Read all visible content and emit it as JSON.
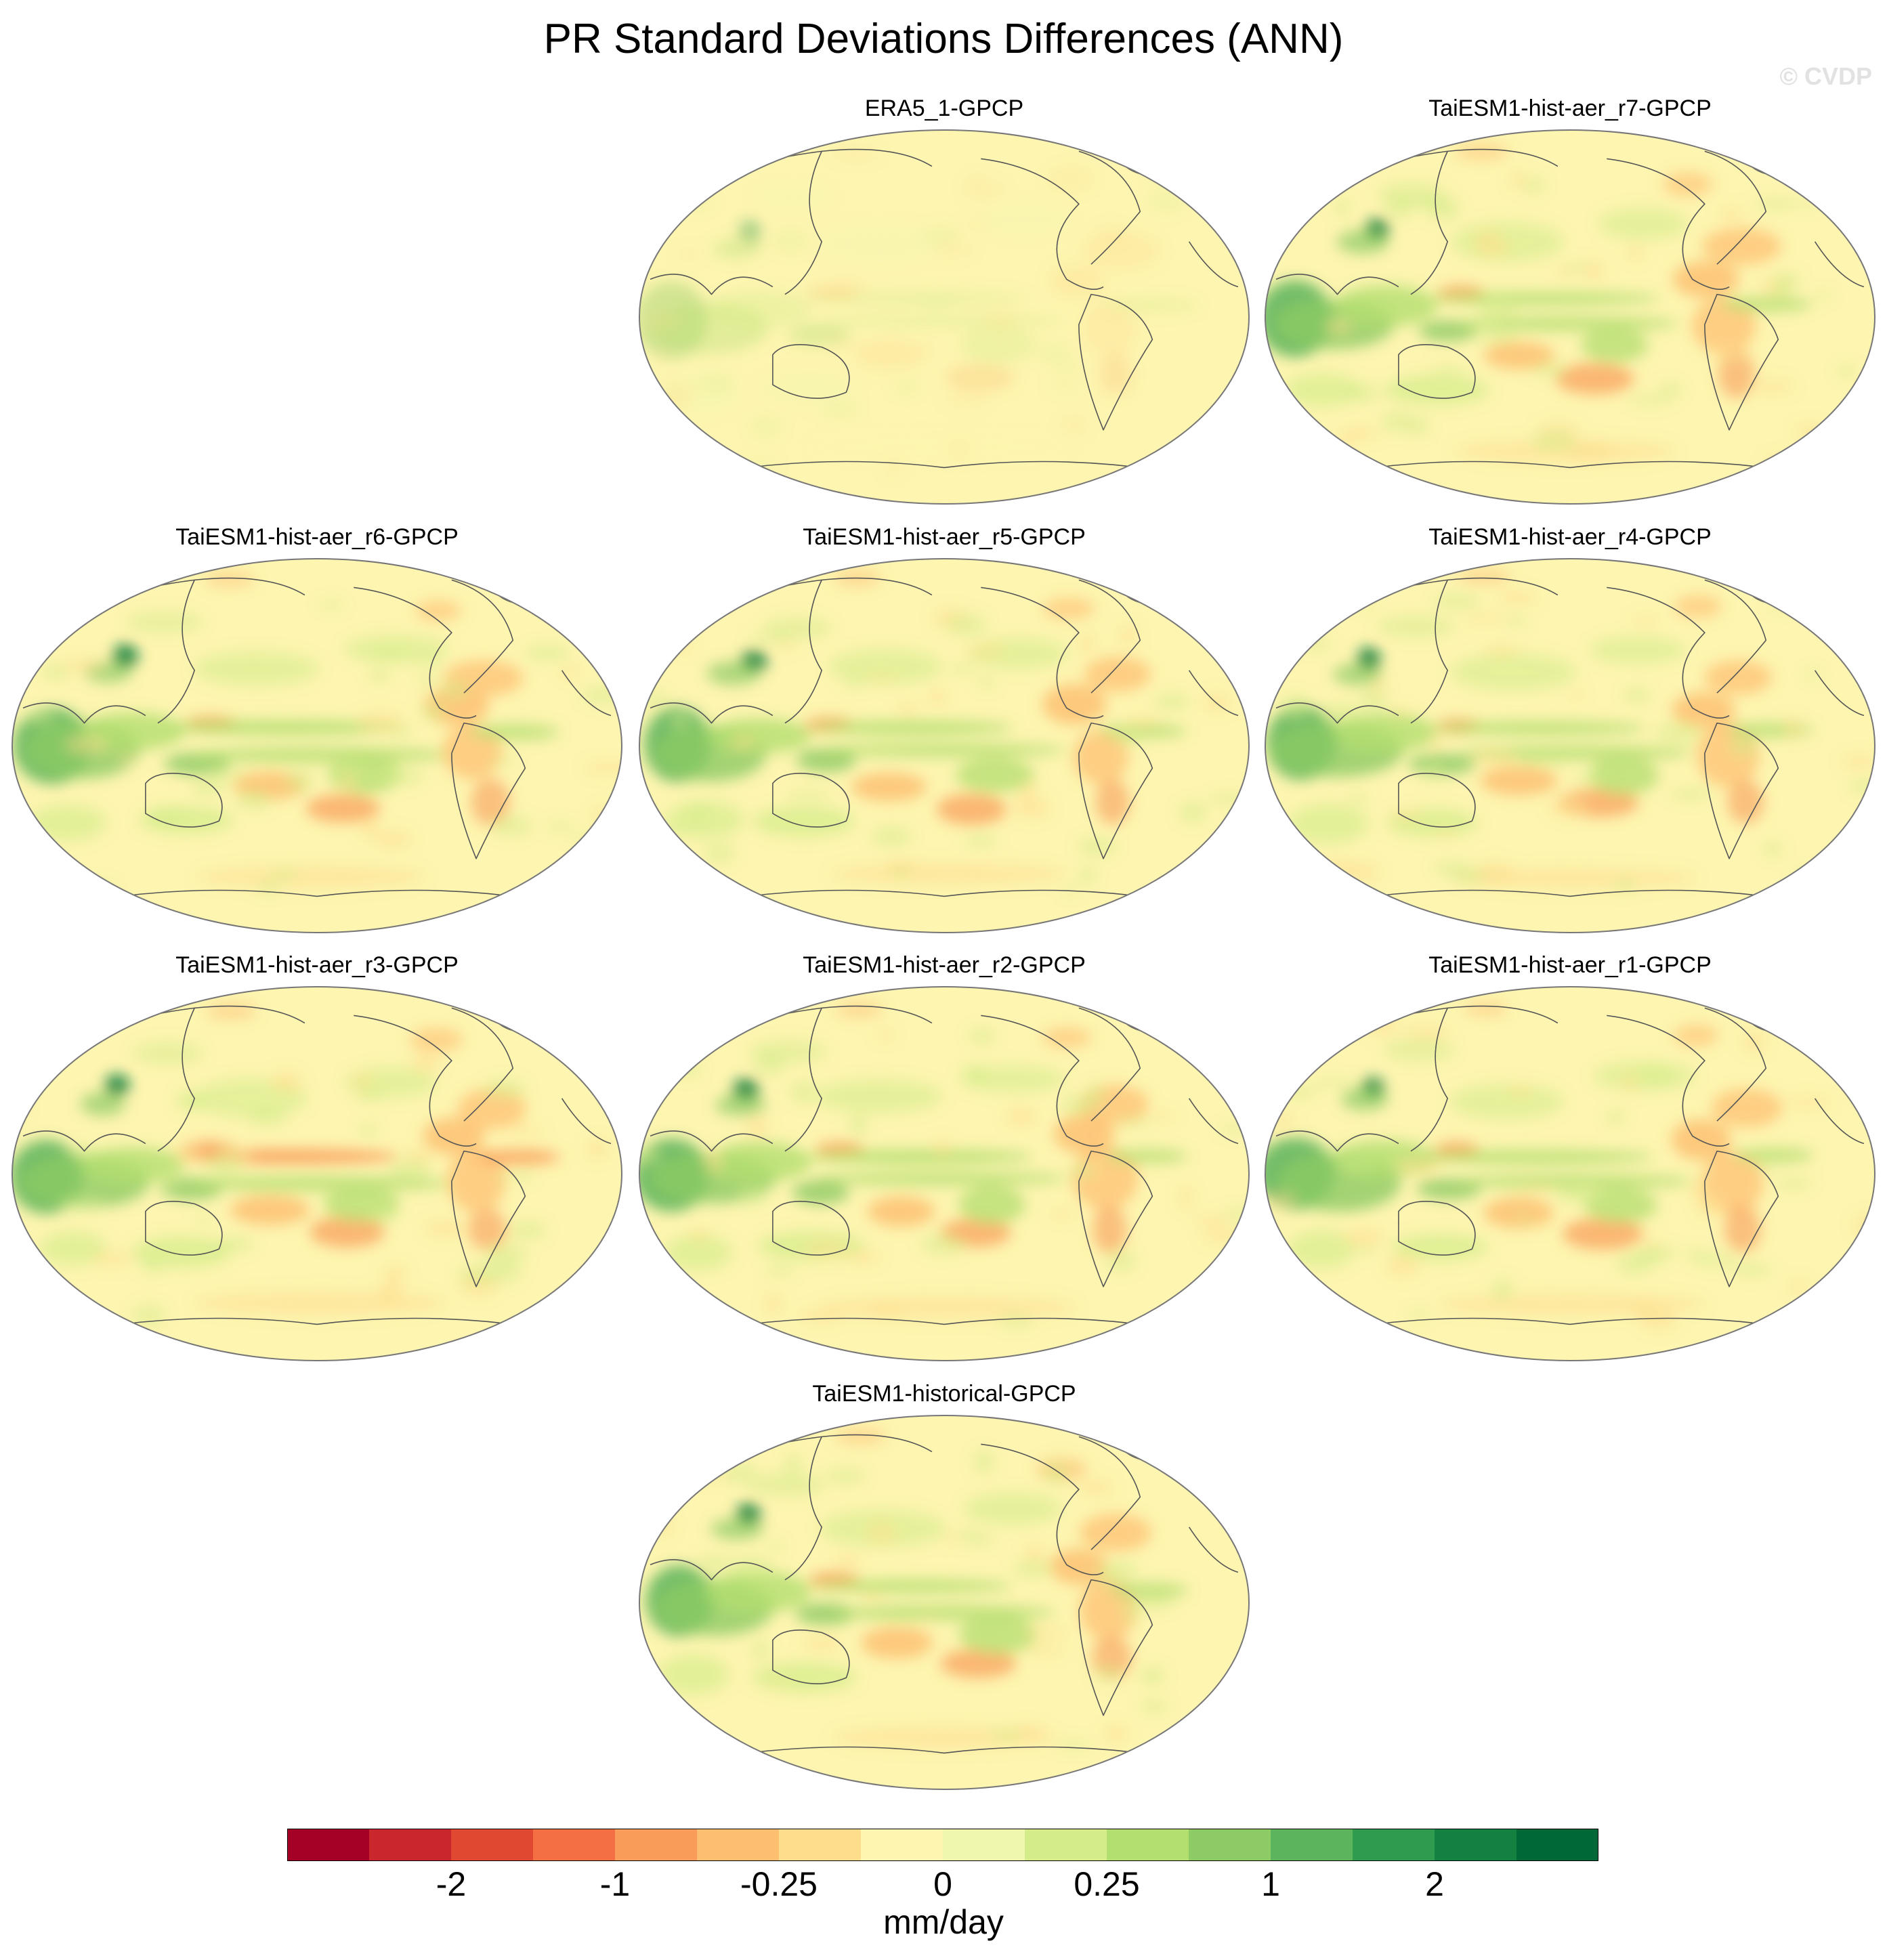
{
  "title": "PR Standard Deviations Differences (ANN)",
  "watermark": "© CVDP",
  "panels": [
    {
      "label": "ERA5_1-GPCP",
      "intensity": 0.45
    },
    {
      "label": "TaiESM1-hist-aer_r7-GPCP",
      "intensity": 1.0
    },
    {
      "label": "TaiESM1-hist-aer_r6-GPCP",
      "intensity": 1.0
    },
    {
      "label": "TaiESM1-hist-aer_r5-GPCP",
      "intensity": 1.0
    },
    {
      "label": "TaiESM1-hist-aer_r4-GPCP",
      "intensity": 1.0
    },
    {
      "label": "TaiESM1-hist-aer_r3-GPCP",
      "intensity": 1.1
    },
    {
      "label": "TaiESM1-hist-aer_r2-GPCP",
      "intensity": 1.0
    },
    {
      "label": "TaiESM1-hist-aer_r1-GPCP",
      "intensity": 1.0
    },
    {
      "label": "TaiESM1-historical-GPCP",
      "intensity": 1.0
    }
  ],
  "chart_data": {
    "type": "heatmap",
    "projection": "Robinson, centered on Pacific",
    "colorbar": {
      "units": "mm/day",
      "levels": [
        "-2",
        "-1",
        "-0.25",
        "0",
        "0.25",
        "1",
        "2"
      ],
      "colors": [
        "#a50026",
        "#c9262e",
        "#e04832",
        "#f47044",
        "#f99c5a",
        "#fdbe6f",
        "#fedd8d",
        "#fdf5b0",
        "#eef7ad",
        "#d4ec89",
        "#b3de70",
        "#8dcb64",
        "#5cb45c",
        "#2f9b4f",
        "#138240",
        "#006837"
      ]
    }
  }
}
